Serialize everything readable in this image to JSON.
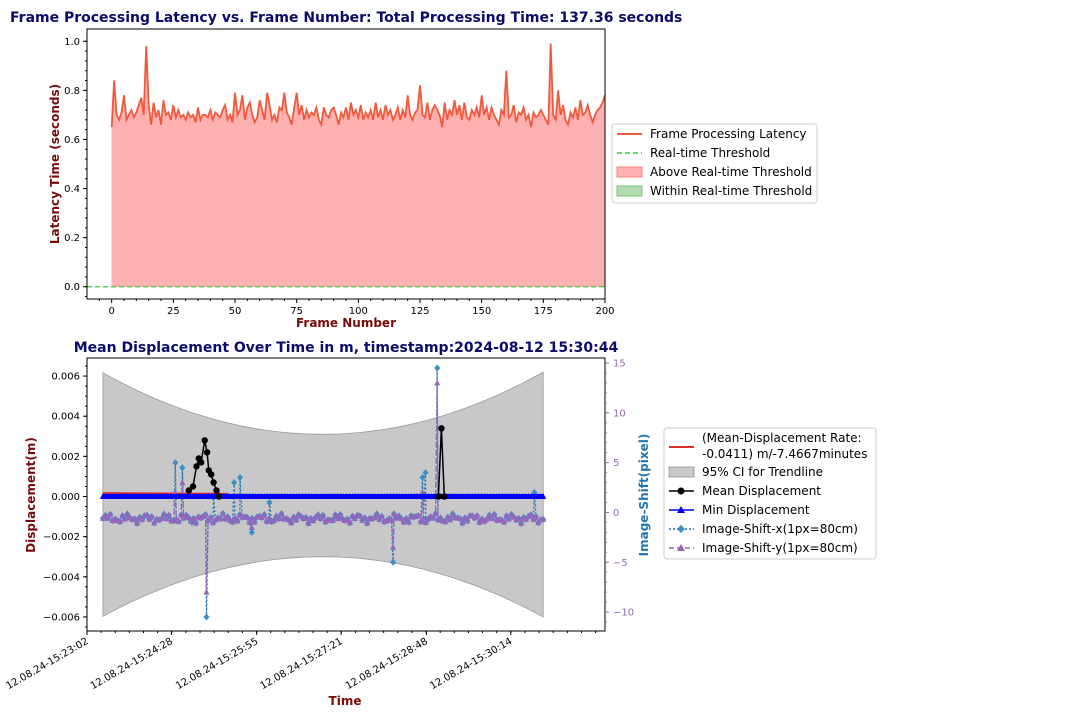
{
  "chart_data": [
    {
      "type": "line",
      "title": "Frame Processing Latency vs. Frame Number: Total Processing Time: 137.36 seconds",
      "xlabel": "Frame Number",
      "ylabel": "Latency Time (seconds)",
      "xlim": [
        -10,
        200
      ],
      "ylim": [
        -0.05,
        1.05
      ],
      "xticks": [
        "0",
        "25",
        "50",
        "75",
        "100",
        "125",
        "150",
        "175",
        "200"
      ],
      "yticks": [
        "0.0",
        "0.2",
        "0.4",
        "0.6",
        "0.8",
        "1.0"
      ],
      "threshold": 0.0,
      "legend_position": "right",
      "legend": [
        "Frame Processing Latency",
        "Real-time Threshold",
        "Above Real-time Threshold",
        "Within Real-time Threshold"
      ],
      "series": [
        {
          "name": "Frame Processing Latency",
          "color": "#f05a3c",
          "x_start": 0,
          "values": [
            0.65,
            0.84,
            0.7,
            0.68,
            0.71,
            0.78,
            0.68,
            0.7,
            0.72,
            0.69,
            0.71,
            0.74,
            0.77,
            0.7,
            0.98,
            0.74,
            0.66,
            0.75,
            0.69,
            0.72,
            0.66,
            0.76,
            0.7,
            0.71,
            0.68,
            0.74,
            0.69,
            0.72,
            0.69,
            0.7,
            0.68,
            0.71,
            0.69,
            0.7,
            0.67,
            0.73,
            0.68,
            0.7,
            0.7,
            0.69,
            0.72,
            0.68,
            0.71,
            0.7,
            0.69,
            0.72,
            0.74,
            0.68,
            0.7,
            0.67,
            0.79,
            0.7,
            0.72,
            0.78,
            0.68,
            0.73,
            0.75,
            0.7,
            0.67,
            0.69,
            0.76,
            0.72,
            0.68,
            0.79,
            0.74,
            0.68,
            0.7,
            0.67,
            0.73,
            0.72,
            0.79,
            0.71,
            0.69,
            0.66,
            0.73,
            0.79,
            0.7,
            0.74,
            0.68,
            0.72,
            0.69,
            0.71,
            0.7,
            0.73,
            0.68,
            0.66,
            0.73,
            0.7,
            0.69,
            0.72,
            0.73,
            0.7,
            0.66,
            0.71,
            0.69,
            0.73,
            0.68,
            0.75,
            0.7,
            0.72,
            0.69,
            0.74,
            0.68,
            0.71,
            0.69,
            0.72,
            0.68,
            0.75,
            0.69,
            0.72,
            0.68,
            0.74,
            0.7,
            0.72,
            0.68,
            0.7,
            0.73,
            0.68,
            0.72,
            0.69,
            0.78,
            0.7,
            0.68,
            0.71,
            0.72,
            0.82,
            0.7,
            0.69,
            0.75,
            0.68,
            0.72,
            0.74,
            0.72,
            0.7,
            0.65,
            0.75,
            0.68,
            0.72,
            0.7,
            0.76,
            0.7,
            0.74,
            0.68,
            0.75,
            0.69,
            0.68,
            0.72,
            0.7,
            0.73,
            0.69,
            0.78,
            0.7,
            0.73,
            0.68,
            0.73,
            0.7,
            0.68,
            0.66,
            0.72,
            0.7,
            0.88,
            0.69,
            0.7,
            0.74,
            0.67,
            0.71,
            0.7,
            0.73,
            0.68,
            0.7,
            0.65,
            0.71,
            0.69,
            0.7,
            0.72,
            0.7,
            0.68,
            0.66,
            0.99,
            0.7,
            0.68,
            0.8,
            0.7,
            0.74,
            0.68,
            0.66,
            0.71,
            0.69,
            0.73,
            0.68,
            0.76,
            0.7,
            0.71,
            0.74,
            0.7,
            0.67,
            0.7,
            0.72,
            0.73,
            0.75,
            0.78
          ]
        }
      ]
    },
    {
      "type": "line",
      "title": "Mean Displacement Over Time in m, timestamp:2024-08-12 15:30:44",
      "xlabel": "Time",
      "ylabel": "Displacement(m)",
      "ylabel_right": "Image-Shift(pixel)",
      "x_units": "minutes from 12.08.24-15:23:02",
      "xlim": [
        0,
        8.8
      ],
      "ylim": [
        -0.0067,
        0.0069
      ],
      "ylim_right": [
        -11.9,
        15.5
      ],
      "xticks": [
        "12.08.24-15:23:02",
        "12.08.24-15:24:28",
        "12.08.24-15:25:55",
        "12.08.24-15:27:21",
        "12.08.24-15:28:48",
        "12.08.24-15:30:14"
      ],
      "xtick_values": [
        0,
        1.4333,
        2.8833,
        4.3167,
        5.7667,
        7.2
      ],
      "yticks": [
        "−0.006",
        "−0.004",
        "−0.002",
        "0.000",
        "0.002",
        "0.004",
        "0.006"
      ],
      "ytick_values": [
        -0.006,
        -0.004,
        -0.002,
        0,
        0.002,
        0.004,
        0.006
      ],
      "yticks_right": [
        "−10",
        "−5",
        "0",
        "5",
        "10",
        "15"
      ],
      "ytick_values_right": [
        -10,
        -5,
        0,
        5,
        10,
        15
      ],
      "legend_position": "right",
      "legend": [
        "(Mean-Displacement Rate:\n -0.0411) m/-7.4667minutes",
        "95% CI for Trendline",
        "Mean Displacement",
        "Min Displacement",
        "Image-Shift-x(1px=80cm)",
        "Image-Shift-y(1px=80cm)"
      ],
      "trendline": {
        "x": [
          0.27,
          2.4
        ],
        "y": [
          0.00017,
          0.00013
        ],
        "color": "#e0302a"
      },
      "ci_band": {
        "x_start": 0.27,
        "x_end": 7.75,
        "x_mid": 4.0,
        "upper_end": 0.0062,
        "upper_mid": 0.0031,
        "lower_end": -0.006,
        "lower_mid": -0.003,
        "color": "#c8c8c8"
      },
      "mean_displacement": {
        "color": "#000000",
        "x": [
          1.73,
          1.8,
          1.86,
          1.9,
          1.94,
          2.0,
          2.04,
          2.07,
          2.11,
          2.15,
          2.2,
          2.24,
          5.97,
          6.02,
          6.07
        ],
        "y": [
          0.0003,
          0.0005,
          0.0015,
          0.0019,
          0.0017,
          0.0028,
          0.0022,
          0.0013,
          0.0011,
          0.0007,
          0.0003,
          0.0,
          0.0,
          0.0034,
          0.0
        ]
      },
      "min_displacement": {
        "color": "#0000ff",
        "x_start": 0.27,
        "x_end": 7.75,
        "value": 0.0
      },
      "image_shift_x": {
        "color": "#1f77b4",
        "marker_color": "#3a8fc4",
        "x_start": 0.27,
        "x_end": 7.75,
        "spikes": [
          [
            1.5,
            5.0
          ],
          [
            1.62,
            4.5
          ],
          [
            1.78,
            -1.0
          ],
          [
            2.03,
            -10.5
          ],
          [
            2.15,
            1.5
          ],
          [
            2.5,
            3.0
          ],
          [
            2.6,
            3.5
          ],
          [
            2.8,
            -2.0
          ],
          [
            3.1,
            1.0
          ],
          [
            5.2,
            -5.0
          ],
          [
            5.7,
            3.5
          ],
          [
            5.75,
            4.0
          ],
          [
            5.95,
            14.5
          ],
          [
            7.6,
            2.0
          ]
        ]
      },
      "image_shift_y": {
        "color": "#9467bd",
        "x_start": 0.27,
        "x_end": 7.75,
        "spikes": [
          [
            1.5,
            2.0
          ],
          [
            1.62,
            3.0
          ],
          [
            2.03,
            -8.0
          ],
          [
            2.8,
            -1.5
          ],
          [
            5.2,
            -3.5
          ],
          [
            5.7,
            2.0
          ],
          [
            5.95,
            13.0
          ]
        ]
      }
    }
  ]
}
